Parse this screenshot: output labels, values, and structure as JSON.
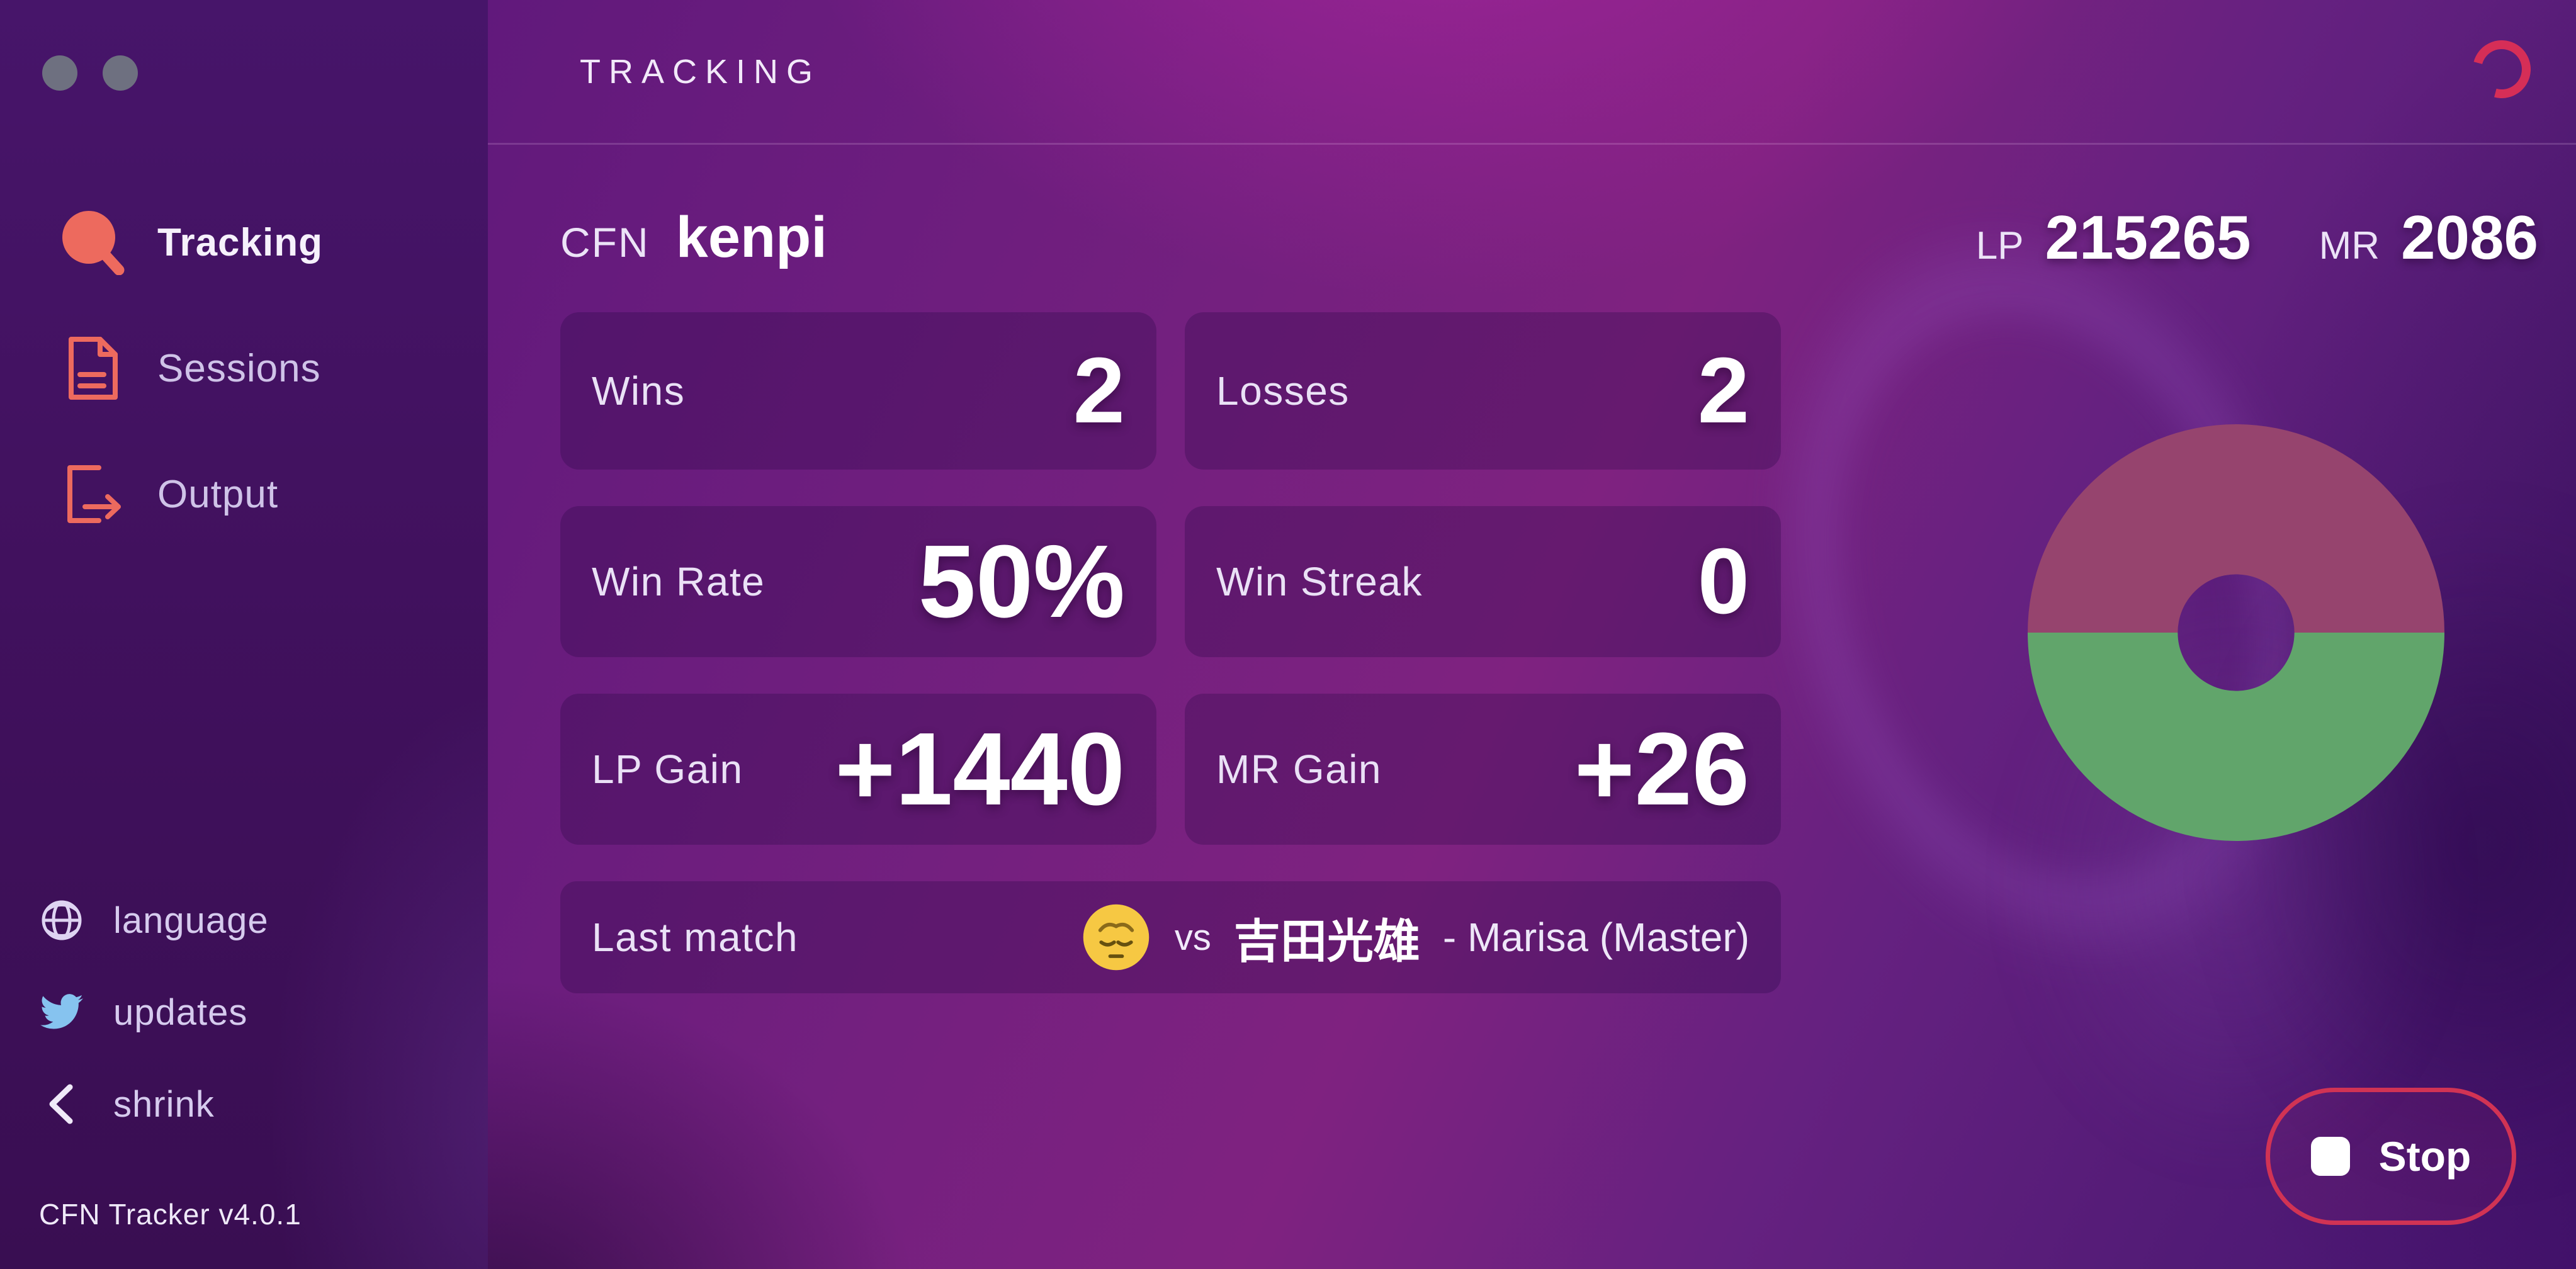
{
  "app": {
    "version_label": "CFN Tracker v4.0.1"
  },
  "header": {
    "title": "TRACKING"
  },
  "sidebar": {
    "items": [
      {
        "label": "Tracking",
        "icon": "magnifier-icon",
        "active": true
      },
      {
        "label": "Sessions",
        "icon": "document-icon",
        "active": false
      },
      {
        "label": "Output",
        "icon": "export-icon",
        "active": false
      }
    ],
    "footer_items": [
      {
        "label": "language",
        "icon": "globe-icon"
      },
      {
        "label": "updates",
        "icon": "twitter-icon"
      },
      {
        "label": "shrink",
        "icon": "chevron-left-icon"
      }
    ]
  },
  "player": {
    "network_label": "CFN",
    "name": "kenpi",
    "lp_label": "LP",
    "lp_value": "215265",
    "mr_label": "MR",
    "mr_value": "2086"
  },
  "stats": {
    "wins": {
      "label": "Wins",
      "value": "2"
    },
    "losses": {
      "label": "Losses",
      "value": "2"
    },
    "win_rate": {
      "label": "Win Rate",
      "value": "50%"
    },
    "win_streak": {
      "label": "Win Streak",
      "value": "0"
    },
    "lp_gain": {
      "label": "LP Gain",
      "value": "+1440"
    },
    "mr_gain": {
      "label": "MR Gain",
      "value": "+26"
    }
  },
  "last_match": {
    "label": "Last match",
    "emoji": "pensive-face",
    "vs_label": "vs",
    "opponent": "吉田光雄",
    "result_detail": "- Marisa (Master)"
  },
  "chart_data": {
    "type": "pie",
    "title": "Win/Loss donut",
    "hole_ratio": 0.28,
    "segments": [
      {
        "name": "Losses",
        "value": 2,
        "color": "#96446e"
      },
      {
        "name": "Wins",
        "value": 2,
        "color": "#61a56b"
      }
    ],
    "legend": "none"
  },
  "controls": {
    "stop_label": "Stop"
  },
  "colors": {
    "accent_coral": "#ed6a5e",
    "spinner_crimson": "#d62e57",
    "stop_border": "#d13354",
    "twitter_blue": "#86c3ef",
    "loss_maroon": "#96446e",
    "win_green": "#61a56b"
  }
}
